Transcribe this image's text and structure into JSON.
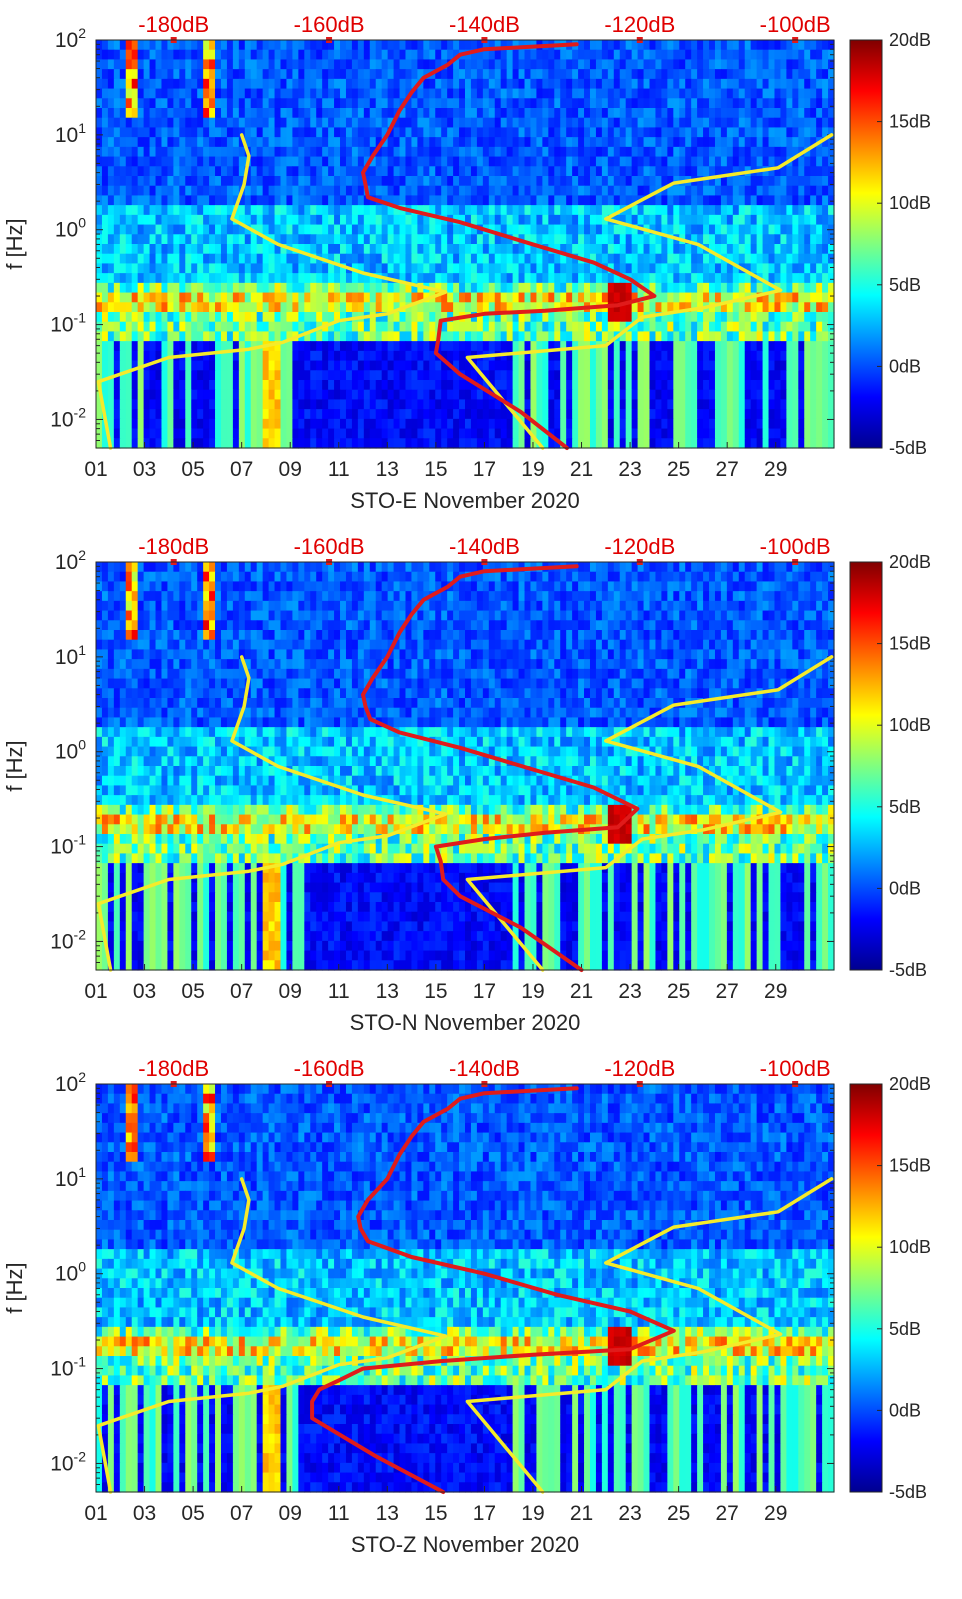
{
  "chart_data": [
    {
      "type": "heatmap",
      "title": "",
      "xlabel": "STO-E November 2020",
      "ylabel": "f [Hz]",
      "x_tick_labels": [
        "01",
        "03",
        "05",
        "07",
        "09",
        "11",
        "13",
        "15",
        "17",
        "19",
        "21",
        "23",
        "25",
        "27",
        "29"
      ],
      "x_ticks_day": [
        1,
        3,
        5,
        7,
        9,
        11,
        13,
        15,
        17,
        19,
        21,
        23,
        25,
        27,
        29
      ],
      "x_range_day": [
        1,
        31.4
      ],
      "y_scale": "log",
      "y_range_hz": [
        0.005,
        100
      ],
      "y_ticks": [
        {
          "value": 100,
          "base": "10",
          "exp": "2"
        },
        {
          "value": 10,
          "base": "10",
          "exp": "1"
        },
        {
          "value": 1,
          "base": "10",
          "exp": "0"
        },
        {
          "value": 0.1,
          "base": "10",
          "exp": "-1"
        },
        {
          "value": 0.01,
          "base": "10",
          "exp": "-2"
        }
      ],
      "top_axis": {
        "labels": [
          "-180dB",
          "-160dB",
          "-140dB",
          "-120dB",
          "-100dB"
        ],
        "values_db": [
          -180,
          -160,
          -140,
          -120,
          -100
        ],
        "range_db": [
          -190,
          -95
        ]
      },
      "colorbar": {
        "labels": [
          "20dB",
          "15dB",
          "10dB",
          "5dB",
          "0dB",
          "-5dB"
        ],
        "values": [
          20,
          15,
          10,
          5,
          0,
          -5
        ],
        "range": [
          -5,
          20
        ],
        "colormap": "jet"
      },
      "series": [
        {
          "name": "yellow_noise_model_left",
          "color": "#f5eb2a",
          "points": [
            [
              7.0,
              10
            ],
            [
              7.3,
              6
            ],
            [
              7.1,
              3
            ],
            [
              6.6,
              1.3
            ],
            [
              8.5,
              0.7
            ],
            [
              12,
              0.35
            ],
            [
              15.4,
              0.22
            ],
            [
              13,
              0.13
            ],
            [
              11,
              0.11
            ],
            [
              8.7,
              0.065
            ],
            [
              7.3,
              0.055
            ],
            [
              4,
              0.045
            ],
            [
              1.1,
              0.025
            ],
            [
              1.6,
              0.005
            ]
          ]
        },
        {
          "name": "yellow_noise_model_right",
          "color": "#f5eb2a",
          "points": [
            [
              31.3,
              10
            ],
            [
              29.1,
              4.5
            ],
            [
              24.8,
              3.1
            ],
            [
              22,
              1.3
            ],
            [
              25.8,
              0.7
            ],
            [
              29.2,
              0.23
            ],
            [
              26,
              0.15
            ],
            [
              23.5,
              0.12
            ],
            [
              22,
              0.06
            ],
            [
              16.3,
              0.045
            ],
            [
              19.4,
              0.005
            ]
          ]
        },
        {
          "name": "red_psd_E",
          "color": "#e01b1b",
          "points": [
            [
              20.8,
              90
            ],
            [
              17,
              80
            ],
            [
              16,
              70
            ],
            [
              15.5,
              55
            ],
            [
              14.5,
              40
            ],
            [
              14,
              28
            ],
            [
              13.5,
              18
            ],
            [
              13,
              10
            ],
            [
              12.4,
              6
            ],
            [
              12.0,
              4
            ],
            [
              12.1,
              3
            ],
            [
              12.2,
              2.2
            ],
            [
              13.5,
              1.7
            ],
            [
              16,
              1.2
            ],
            [
              19,
              0.7
            ],
            [
              21.5,
              0.45
            ],
            [
              23,
              0.3
            ],
            [
              24,
              0.2
            ],
            [
              22.5,
              0.16
            ],
            [
              19.5,
              0.14
            ],
            [
              17,
              0.13
            ],
            [
              15.2,
              0.11
            ],
            [
              15.1,
              0.07
            ],
            [
              15.0,
              0.05
            ],
            [
              16,
              0.03
            ],
            [
              18.5,
              0.012
            ],
            [
              20.4,
              0.005
            ]
          ]
        }
      ]
    },
    {
      "type": "heatmap",
      "title": "",
      "xlabel": "STO-N November 2020",
      "ylabel": "f [Hz]",
      "x_tick_labels": [
        "01",
        "03",
        "05",
        "07",
        "09",
        "11",
        "13",
        "15",
        "17",
        "19",
        "21",
        "23",
        "25",
        "27",
        "29"
      ],
      "x_ticks_day": [
        1,
        3,
        5,
        7,
        9,
        11,
        13,
        15,
        17,
        19,
        21,
        23,
        25,
        27,
        29
      ],
      "x_range_day": [
        1,
        31.4
      ],
      "y_scale": "log",
      "y_range_hz": [
        0.005,
        100
      ],
      "y_ticks": [
        {
          "value": 100,
          "base": "10",
          "exp": "2"
        },
        {
          "value": 10,
          "base": "10",
          "exp": "1"
        },
        {
          "value": 1,
          "base": "10",
          "exp": "0"
        },
        {
          "value": 0.1,
          "base": "10",
          "exp": "-1"
        },
        {
          "value": 0.01,
          "base": "10",
          "exp": "-2"
        }
      ],
      "top_axis": {
        "labels": [
          "-180dB",
          "-160dB",
          "-140dB",
          "-120dB",
          "-100dB"
        ],
        "values_db": [
          -180,
          -160,
          -140,
          -120,
          -100
        ],
        "range_db": [
          -190,
          -95
        ]
      },
      "colorbar": {
        "labels": [
          "20dB",
          "15dB",
          "10dB",
          "5dB",
          "0dB",
          "-5dB"
        ],
        "values": [
          20,
          15,
          10,
          5,
          0,
          -5
        ],
        "range": [
          -5,
          20
        ],
        "colormap": "jet"
      },
      "series": [
        {
          "name": "yellow_noise_model_left",
          "color": "#f5eb2a",
          "points": [
            [
              7.0,
              10
            ],
            [
              7.3,
              6
            ],
            [
              7.1,
              3
            ],
            [
              6.6,
              1.3
            ],
            [
              8.5,
              0.7
            ],
            [
              12,
              0.35
            ],
            [
              15.4,
              0.22
            ],
            [
              13,
              0.13
            ],
            [
              11,
              0.11
            ],
            [
              8.7,
              0.065
            ],
            [
              7.3,
              0.055
            ],
            [
              4,
              0.045
            ],
            [
              1.1,
              0.025
            ],
            [
              1.6,
              0.005
            ]
          ]
        },
        {
          "name": "yellow_noise_model_right",
          "color": "#f5eb2a",
          "points": [
            [
              31.3,
              10
            ],
            [
              29.1,
              4.5
            ],
            [
              24.8,
              3.1
            ],
            [
              22,
              1.3
            ],
            [
              25.8,
              0.7
            ],
            [
              29.2,
              0.23
            ],
            [
              26,
              0.15
            ],
            [
              23.5,
              0.12
            ],
            [
              22,
              0.06
            ],
            [
              16.3,
              0.045
            ],
            [
              19.4,
              0.005
            ]
          ]
        },
        {
          "name": "red_psd_N",
          "color": "#e01b1b",
          "points": [
            [
              20.8,
              90
            ],
            [
              17,
              80
            ],
            [
              16,
              70
            ],
            [
              15.5,
              55
            ],
            [
              14.5,
              40
            ],
            [
              14,
              28
            ],
            [
              13.5,
              18
            ],
            [
              13,
              10
            ],
            [
              12.4,
              6
            ],
            [
              12.0,
              4
            ],
            [
              12.1,
              3
            ],
            [
              12.3,
              2.2
            ],
            [
              13.5,
              1.6
            ],
            [
              16,
              1.1
            ],
            [
              19,
              0.65
            ],
            [
              21.5,
              0.42
            ],
            [
              23.3,
              0.25
            ],
            [
              22.5,
              0.16
            ],
            [
              19.5,
              0.14
            ],
            [
              17,
              0.12
            ],
            [
              15.0,
              0.1
            ],
            [
              15.2,
              0.07
            ],
            [
              15.3,
              0.045
            ],
            [
              16,
              0.03
            ],
            [
              18.5,
              0.014
            ],
            [
              21.0,
              0.005
            ]
          ]
        }
      ]
    },
    {
      "type": "heatmap",
      "title": "",
      "xlabel": "STO-Z November 2020",
      "ylabel": "f [Hz]",
      "x_tick_labels": [
        "01",
        "03",
        "05",
        "07",
        "09",
        "11",
        "13",
        "15",
        "17",
        "19",
        "21",
        "23",
        "25",
        "27",
        "29"
      ],
      "x_ticks_day": [
        1,
        3,
        5,
        7,
        9,
        11,
        13,
        15,
        17,
        19,
        21,
        23,
        25,
        27,
        29
      ],
      "x_range_day": [
        1,
        31.4
      ],
      "y_scale": "log",
      "y_range_hz": [
        0.005,
        100
      ],
      "y_ticks": [
        {
          "value": 100,
          "base": "10",
          "exp": "2"
        },
        {
          "value": 10,
          "base": "10",
          "exp": "1"
        },
        {
          "value": 1,
          "base": "10",
          "exp": "0"
        },
        {
          "value": 0.1,
          "base": "10",
          "exp": "-1"
        },
        {
          "value": 0.01,
          "base": "10",
          "exp": "-2"
        }
      ],
      "top_axis": {
        "labels": [
          "-180dB",
          "-160dB",
          "-140dB",
          "-120dB",
          "-100dB"
        ],
        "values_db": [
          -180,
          -160,
          -140,
          -120,
          -100
        ],
        "range_db": [
          -190,
          -95
        ]
      },
      "colorbar": {
        "labels": [
          "20dB",
          "15dB",
          "10dB",
          "5dB",
          "0dB",
          "-5dB"
        ],
        "values": [
          20,
          15,
          10,
          5,
          0,
          -5
        ],
        "range": [
          -5,
          20
        ],
        "colormap": "jet"
      },
      "series": [
        {
          "name": "yellow_noise_model_left",
          "color": "#f5eb2a",
          "points": [
            [
              7.0,
              10
            ],
            [
              7.3,
              6
            ],
            [
              7.1,
              3
            ],
            [
              6.6,
              1.3
            ],
            [
              8.5,
              0.7
            ],
            [
              12,
              0.35
            ],
            [
              15.4,
              0.22
            ],
            [
              13,
              0.13
            ],
            [
              11,
              0.11
            ],
            [
              8.7,
              0.065
            ],
            [
              7.3,
              0.055
            ],
            [
              4,
              0.045
            ],
            [
              1.1,
              0.025
            ],
            [
              1.6,
              0.005
            ]
          ]
        },
        {
          "name": "yellow_noise_model_right",
          "color": "#f5eb2a",
          "points": [
            [
              31.3,
              10
            ],
            [
              29.1,
              4.5
            ],
            [
              24.8,
              3.1
            ],
            [
              22,
              1.3
            ],
            [
              25.8,
              0.7
            ],
            [
              29.2,
              0.23
            ],
            [
              26,
              0.15
            ],
            [
              23.5,
              0.12
            ],
            [
              22,
              0.06
            ],
            [
              16.3,
              0.045
            ],
            [
              19.4,
              0.005
            ]
          ]
        },
        {
          "name": "red_psd_Z",
          "color": "#e01b1b",
          "points": [
            [
              20.8,
              90
            ],
            [
              17,
              80
            ],
            [
              16,
              70
            ],
            [
              15.5,
              55
            ],
            [
              14.5,
              40
            ],
            [
              14,
              28
            ],
            [
              13.5,
              18
            ],
            [
              13,
              10
            ],
            [
              12.2,
              6
            ],
            [
              11.8,
              4
            ],
            [
              11.9,
              3
            ],
            [
              12.2,
              2.2
            ],
            [
              14,
              1.5
            ],
            [
              17,
              1.0
            ],
            [
              20,
              0.6
            ],
            [
              23,
              0.4
            ],
            [
              24.8,
              0.25
            ],
            [
              23,
              0.16
            ],
            [
              19,
              0.14
            ],
            [
              15.2,
              0.12
            ],
            [
              12,
              0.1
            ],
            [
              11,
              0.075
            ],
            [
              10.2,
              0.06
            ],
            [
              9.9,
              0.045
            ],
            [
              9.9,
              0.03
            ],
            [
              12.5,
              0.012
            ],
            [
              15.3,
              0.005
            ]
          ]
        }
      ]
    }
  ]
}
